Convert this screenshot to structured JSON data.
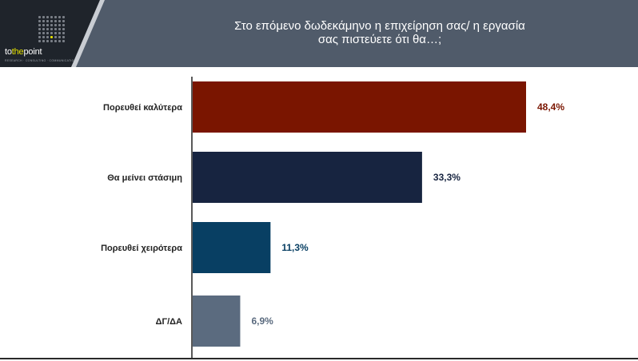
{
  "header": {
    "title": "Στο επόμενο δωδεκάμηνο η επιχείρηση σας/ η εργασία\nσας  πιστεύετε ότι θα…;",
    "logo": {
      "word_start": "to",
      "word_accent": "the",
      "word_end": "point",
      "tagline": "RESEARCH · CONSULTING · COMMUNICATION"
    }
  },
  "colors": {
    "header_bg": "#505b6a",
    "logo_bg": "#1f242b",
    "logo_accent": "#e4e000"
  },
  "chart_data": {
    "type": "bar",
    "orientation": "horizontal",
    "categories": [
      "Πορευθεί καλύτερα",
      "Θα μείνει στάσιμη",
      "Πορευθεί χειρότερα",
      "ΔΓ/ΔΑ"
    ],
    "values": [
      48.4,
      33.3,
      11.3,
      6.9
    ],
    "value_labels": [
      "48,4%",
      "33,3%",
      "11,3%",
      "6,9%"
    ],
    "bar_colors": [
      "#7a1500",
      "#172440",
      "#083f63",
      "#5b6b7f"
    ],
    "label_colors": [
      "#7a1500",
      "#172440",
      "#083f63",
      "#5b6b7f"
    ],
    "xlim": [
      0,
      50
    ],
    "grid": false,
    "legend": "none"
  }
}
